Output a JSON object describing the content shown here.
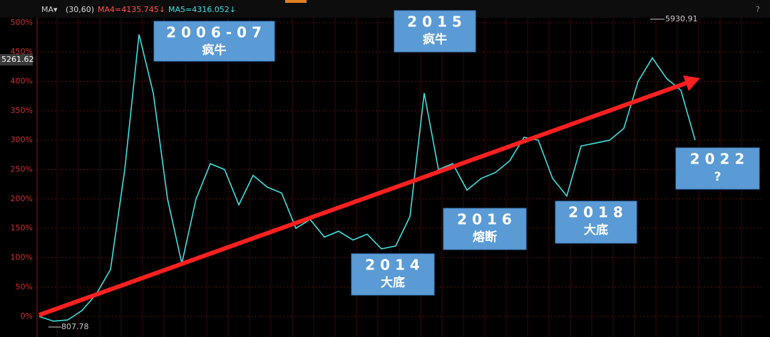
{
  "chart_data": {
    "type": "line",
    "toolbar": {
      "indicator": "MA▾",
      "params": "(30,60)",
      "ma4": "MA4=4135.745↓",
      "ma5": "MA5=4316.052↓",
      "help": "?"
    },
    "price_tag": "5261.62",
    "high_label": "5930.91",
    "low_label": "807.78",
    "values": [
      0,
      -8,
      -6,
      10,
      38,
      80,
      250,
      480,
      380,
      200,
      90,
      200,
      260,
      250,
      190,
      240,
      220,
      210,
      150,
      165,
      135,
      145,
      130,
      140,
      115,
      120,
      170,
      380,
      250,
      260,
      215,
      235,
      245,
      265,
      305,
      300,
      235,
      205,
      290,
      295,
      300,
      320,
      400,
      440,
      405,
      385,
      300
    ],
    "color": "#3ee0e0",
    "trend_color": "#ff2020",
    "ylim": [
      -35,
      518
    ],
    "yticks": [
      {
        "value": 0,
        "label": "0%"
      },
      {
        "value": 50,
        "label": "50%"
      },
      {
        "value": 100,
        "label": "100%"
      },
      {
        "value": 150,
        "label": "150%"
      },
      {
        "value": 200,
        "label": "200%"
      },
      {
        "value": 250,
        "label": "250%"
      },
      {
        "value": 300,
        "label": "300%"
      },
      {
        "value": 350,
        "label": "350%"
      },
      {
        "value": 400,
        "label": "400%"
      },
      {
        "value": 450,
        "label": "450%"
      },
      {
        "value": 500,
        "label": "500%"
      }
    ],
    "grid": true,
    "annotations": [
      {
        "title": "2006-07",
        "subtitle": "疯牛"
      },
      {
        "title": "2015",
        "subtitle": "疯牛"
      },
      {
        "title": "2014",
        "subtitle": "大底"
      },
      {
        "title": "2016",
        "subtitle": "熔断"
      },
      {
        "title": "2018",
        "subtitle": "大底"
      },
      {
        "title": "2022",
        "subtitle": "?"
      }
    ]
  }
}
